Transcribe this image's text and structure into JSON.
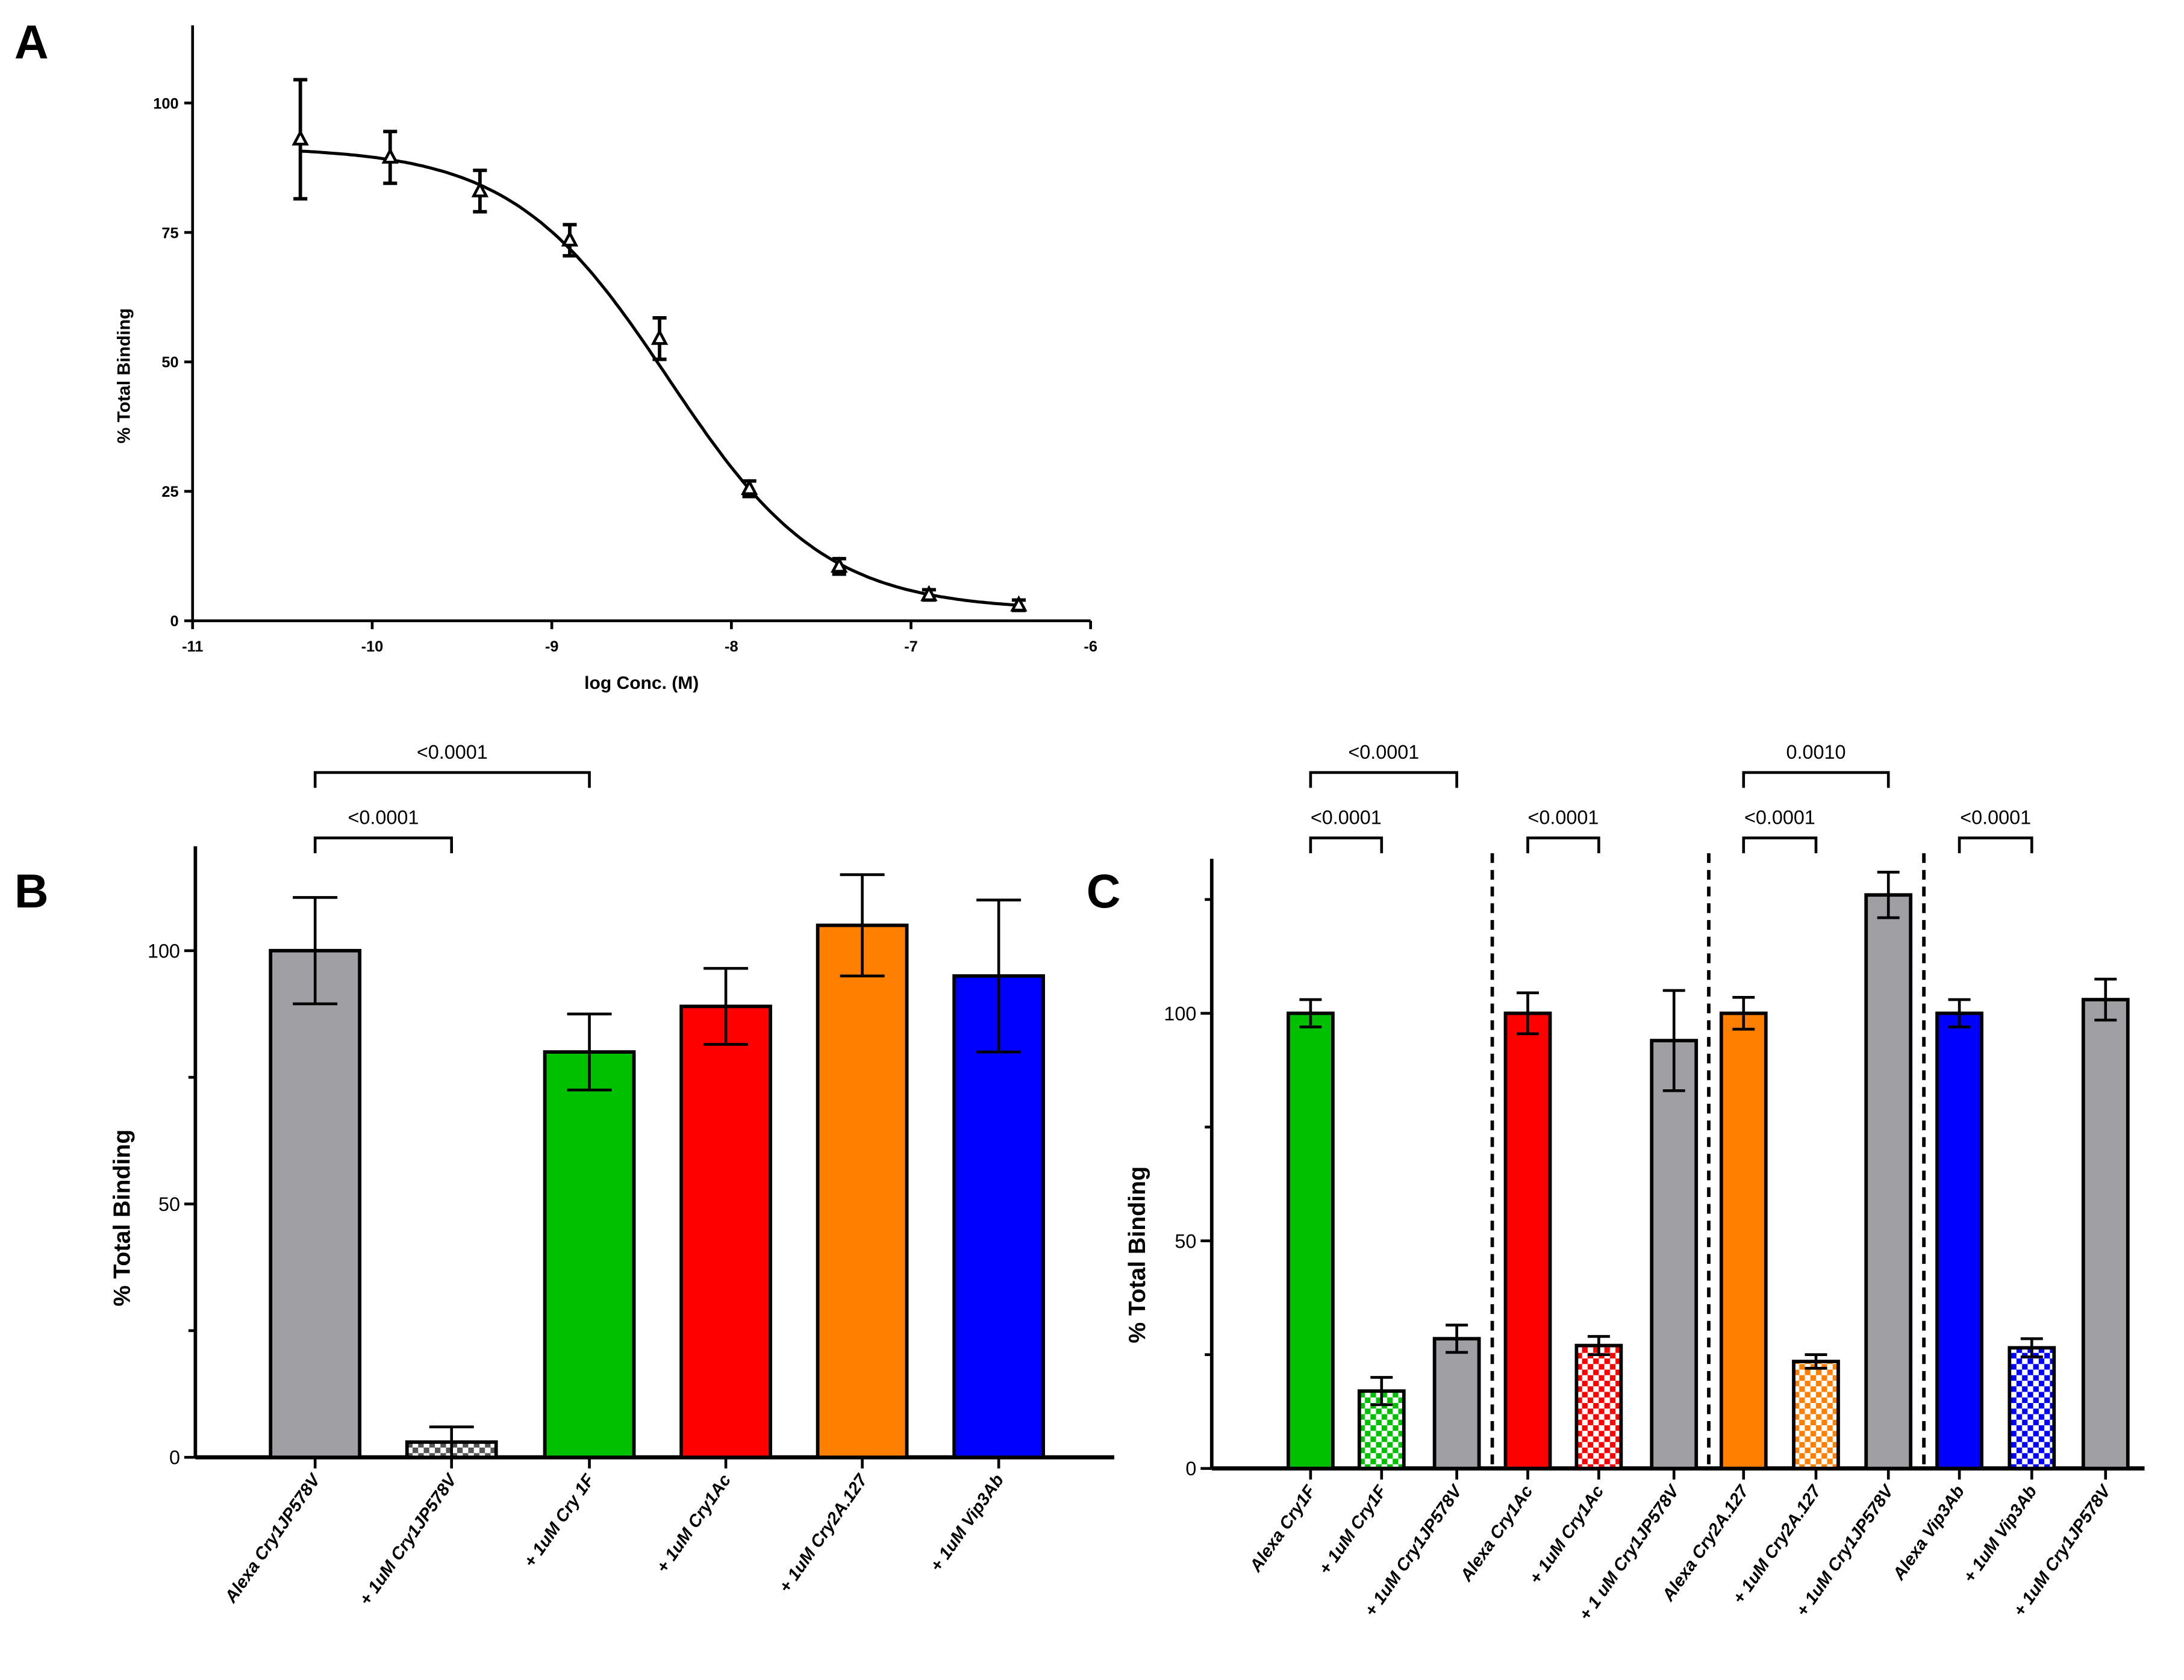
{
  "panels": {
    "a": "A",
    "b": "B",
    "c": "C"
  },
  "chart_data": [
    {
      "type": "scatter",
      "panel": "A",
      "xlabel": "log Conc. (M)",
      "ylabel": "% Total Binding",
      "xlim": [
        -11,
        -6
      ],
      "ylim": [
        0,
        115
      ],
      "xticks": [
        -11,
        -10,
        -9,
        -8,
        -7,
        -6
      ],
      "yticks": [
        0,
        25,
        50,
        75,
        100
      ],
      "marker": "triangle-open",
      "x": [
        -10.4,
        -9.9,
        -9.4,
        -8.9,
        -8.4,
        -7.9,
        -7.4,
        -6.9,
        -6.4
      ],
      "y": [
        93,
        89.5,
        83,
        73.5,
        54.5,
        25.5,
        10.5,
        5,
        3
      ],
      "error": [
        11.5,
        5,
        4,
        3,
        4,
        1.5,
        1.5,
        1,
        1
      ],
      "fit": {
        "model": "sigmoidal dose-response",
        "bottom": 2,
        "top": 91.5,
        "logIC50": -8.35,
        "hill": 1
      }
    },
    {
      "type": "bar",
      "panel": "B",
      "ylabel": "% Total Binding",
      "ylim": [
        0,
        120
      ],
      "yticks": [
        0,
        50,
        100
      ],
      "categories": [
        "Alexa Cry1JP578V",
        "+ 1uM Cry1JP578V",
        "+ 1uM Cry 1F",
        "+ 1uM Cry1Ac",
        "+ 1uM Cry2A.127",
        "+ 1uM Vip3Ab"
      ],
      "values": [
        100,
        3,
        80,
        89,
        105,
        95
      ],
      "error": [
        10.5,
        3,
        7.5,
        7.5,
        10,
        15
      ],
      "colors": [
        "#a0a0a4",
        "#555555",
        "#00c000",
        "#ff0000",
        "#ff8000",
        "#0000ff"
      ],
      "patterned": [
        false,
        true,
        false,
        false,
        false,
        false
      ],
      "comparisons": [
        {
          "from": 0,
          "to": 1,
          "label": "<0.0001"
        },
        {
          "from": 0,
          "to": 2,
          "label": "<0.0001"
        }
      ]
    },
    {
      "type": "bar",
      "panel": "C",
      "ylabel": "% Total Binding",
      "ylim": [
        0,
        135
      ],
      "yticks": [
        0,
        50,
        100
      ],
      "categories": [
        "Alexa Cry1F",
        "+ 1uM Cry1F",
        "+ 1uM Cry1JP578V",
        "Alexa Cry1Ac",
        "+ 1uM Cry1Ac",
        "+ 1 uM Cry1JP578V",
        "Alexa Cry2A.127",
        "+ 1uM Cry2A.127",
        "+ 1uM Cry1JP578V",
        "Alexa Vip3Ab",
        "+ 1uM Vip3Ab",
        "+ 1uM Cry1JP578V"
      ],
      "values": [
        100,
        17,
        28.5,
        100,
        27,
        94,
        100,
        23.5,
        126,
        100,
        26.5,
        103
      ],
      "error": [
        3,
        3,
        3,
        4.5,
        2,
        11,
        3.5,
        1.5,
        5,
        3,
        2,
        4.5
      ],
      "colors": [
        "#00c000",
        "#00c000",
        "#a0a0a4",
        "#ff0000",
        "#ff0000",
        "#a0a0a4",
        "#ff8000",
        "#ff8000",
        "#a0a0a4",
        "#0000ff",
        "#0000ff",
        "#a0a0a4"
      ],
      "patterned": [
        false,
        true,
        false,
        false,
        true,
        false,
        false,
        true,
        false,
        false,
        true,
        false
      ],
      "group_separators_after": [
        2,
        5,
        8
      ],
      "comparisons": [
        {
          "from": 0,
          "to": 1,
          "label": "<0.0001"
        },
        {
          "from": 0,
          "to": 2,
          "label": "<0.0001"
        },
        {
          "from": 3,
          "to": 4,
          "label": "<0.0001"
        },
        {
          "from": 6,
          "to": 7,
          "label": "<0.0001"
        },
        {
          "from": 6,
          "to": 8,
          "label": "0.0010"
        },
        {
          "from": 9,
          "to": 10,
          "label": "<0.0001"
        }
      ]
    }
  ]
}
